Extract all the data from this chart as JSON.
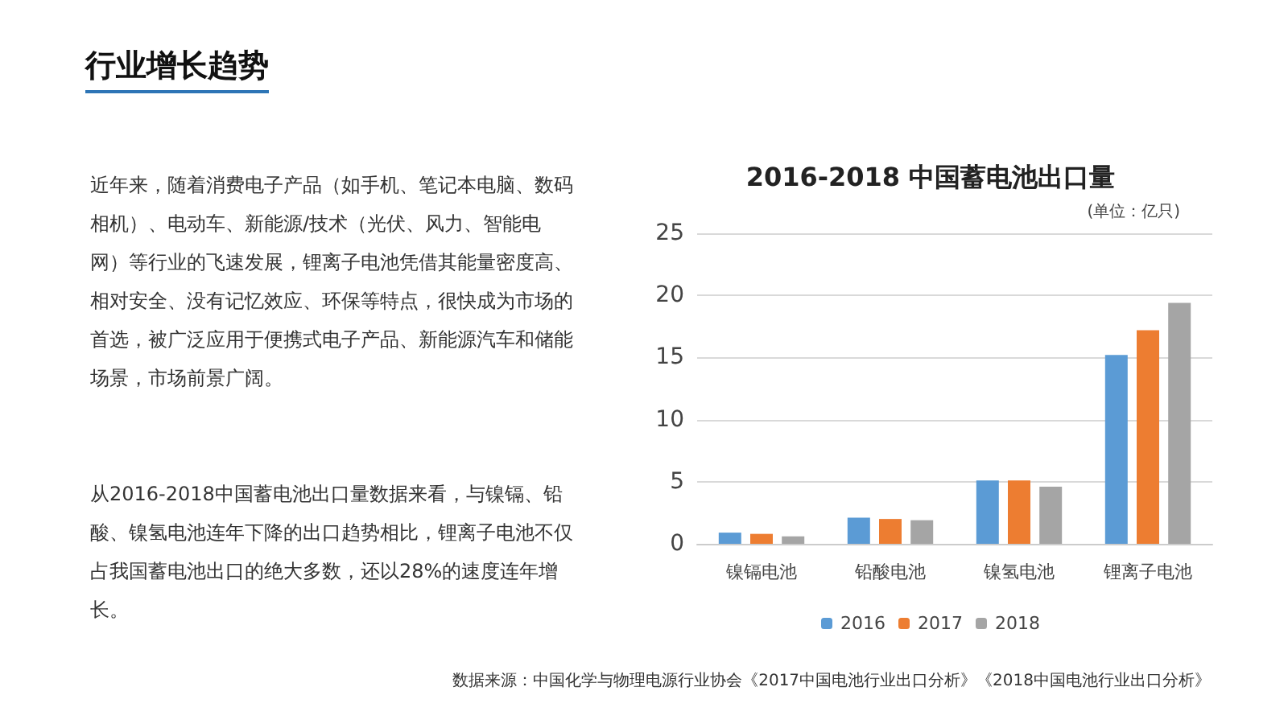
{
  "chart_data": {
    "type": "bar",
    "title": "2016-2018 中国蓄电池出口量",
    "ylabel": "(单位：亿只)",
    "categories": [
      "镍镉电池",
      "铅酸电池",
      "镍氢电池",
      "锂离子电池"
    ],
    "series": [
      {
        "name": "2016",
        "color": "#5b9bd5",
        "values": [
          0.9,
          2.1,
          5.1,
          15.2
        ]
      },
      {
        "name": "2017",
        "color": "#ed7d31",
        "values": [
          0.8,
          2.0,
          5.1,
          17.2
        ]
      },
      {
        "name": "2018",
        "color": "#a5a5a5",
        "values": [
          0.6,
          1.9,
          4.6,
          19.4
        ]
      }
    ],
    "ylim": [
      0,
      25
    ],
    "yticks": [
      0,
      5,
      10,
      15,
      20,
      25
    ],
    "grid": "y",
    "legend": "bottom",
    "annotations": [
      "行业增长趋势",
      "近年来，随着消费电子产品（如手机、笔记本电脑、数码相机）、电动车、新能源/技术（光伏、风力、智能电网）等行业的飞速发展，锂离子电池凭借其能量密度高、相对安全、没有记忆效应、环保等特点，很快成为市场的首选，被广泛应用于便携式电子产品、新能源汽车和储能场景，市场前景广阔。",
      "从2016-2018中国蓄电池出口量数据来看，与镍镉、铅酸、镍氢电池连年下降的出口趋势相比，锂离子电池不仅占我国蓄电池出口的绝大多数，还以28%的速度连年增长。",
      "数据来源：中国化学与物理电源行业协会《2017中国电池行业出口分析》《2018中国电池行业出口分析》"
    ]
  }
}
